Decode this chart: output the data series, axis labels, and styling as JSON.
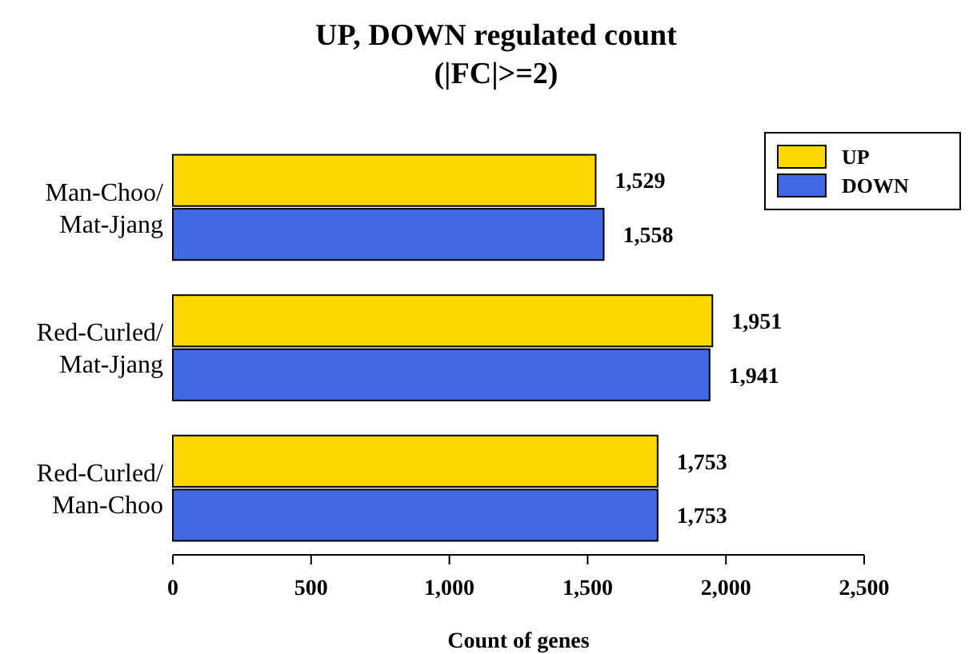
{
  "chart_data": {
    "type": "bar",
    "orientation": "horizontal",
    "title": "UP, DOWN regulated count",
    "subtitle": "(|FC|>=2)",
    "xlabel": "Count of genes",
    "categories": [
      "Man-Choo/Mat-Jjang",
      "Red-Curled/Mat-Jjang",
      "Red-Curled/Man-Choo"
    ],
    "series": [
      {
        "name": "UP",
        "color": "#ffd700",
        "values": [
          1529,
          1951,
          1753
        ],
        "value_labels": [
          "1,529",
          "1,951",
          "1,753"
        ]
      },
      {
        "name": "DOWN",
        "color": "#4169e1",
        "values": [
          1558,
          1941,
          1753
        ],
        "value_labels": [
          "1,558",
          "1,941",
          "1,753"
        ]
      }
    ],
    "xlim": [
      0,
      2500
    ],
    "xticks": [
      0,
      500,
      {
        "value": 1000,
        "label": "1,000"
      },
      {
        "value": 1500,
        "label": "1,500"
      },
      {
        "value": 2000,
        "label": "2,000"
      },
      {
        "value": 2500,
        "label": "2,500"
      }
    ],
    "grid": false,
    "legend": "top right"
  }
}
